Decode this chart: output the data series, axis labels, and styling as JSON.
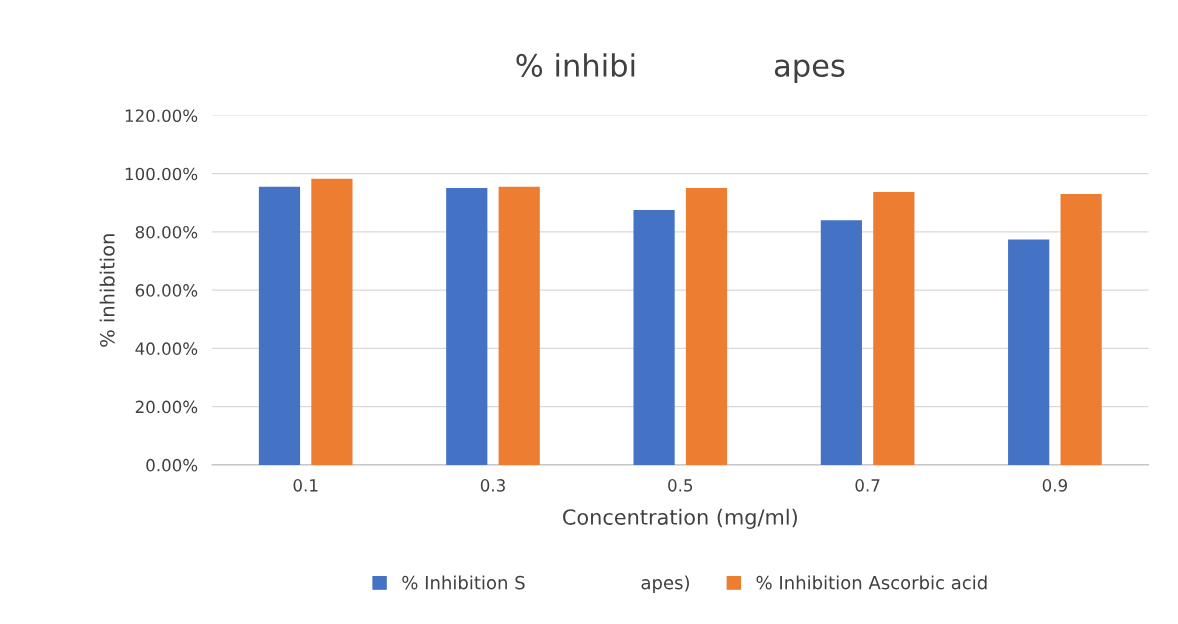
{
  "chart_data": {
    "type": "bar",
    "title": "% inhibi              apes",
    "xlabel": "Concentration (mg/ml)",
    "ylabel": "% inhibition",
    "categories": [
      "0.1",
      "0.3",
      "0.5",
      "0.7",
      "0.9"
    ],
    "series": [
      {
        "name": "% Inhibition S                    apes)",
        "color": "#4472c4",
        "values": [
          0.955,
          0.951,
          0.875,
          0.84,
          0.774
        ]
      },
      {
        "name": "% Inhibition Ascorbic acid",
        "color": "#ed7d31",
        "values": [
          0.983,
          0.955,
          0.951,
          0.937,
          0.93
        ]
      }
    ],
    "ylim": [
      0,
      1.2
    ],
    "yticks": [
      {
        "value": 0,
        "label": "0.00%"
      },
      {
        "value": 0.2,
        "label": "20.00%"
      },
      {
        "value": 0.4,
        "label": "40.00%"
      },
      {
        "value": 0.6,
        "label": "60.00%"
      },
      {
        "value": 0.8,
        "label": "80.00%"
      },
      {
        "value": 1.0,
        "label": "100.00%"
      },
      {
        "value": 1.2,
        "label": "120.00%"
      }
    ],
    "grid": "y",
    "legend": "bottom"
  }
}
